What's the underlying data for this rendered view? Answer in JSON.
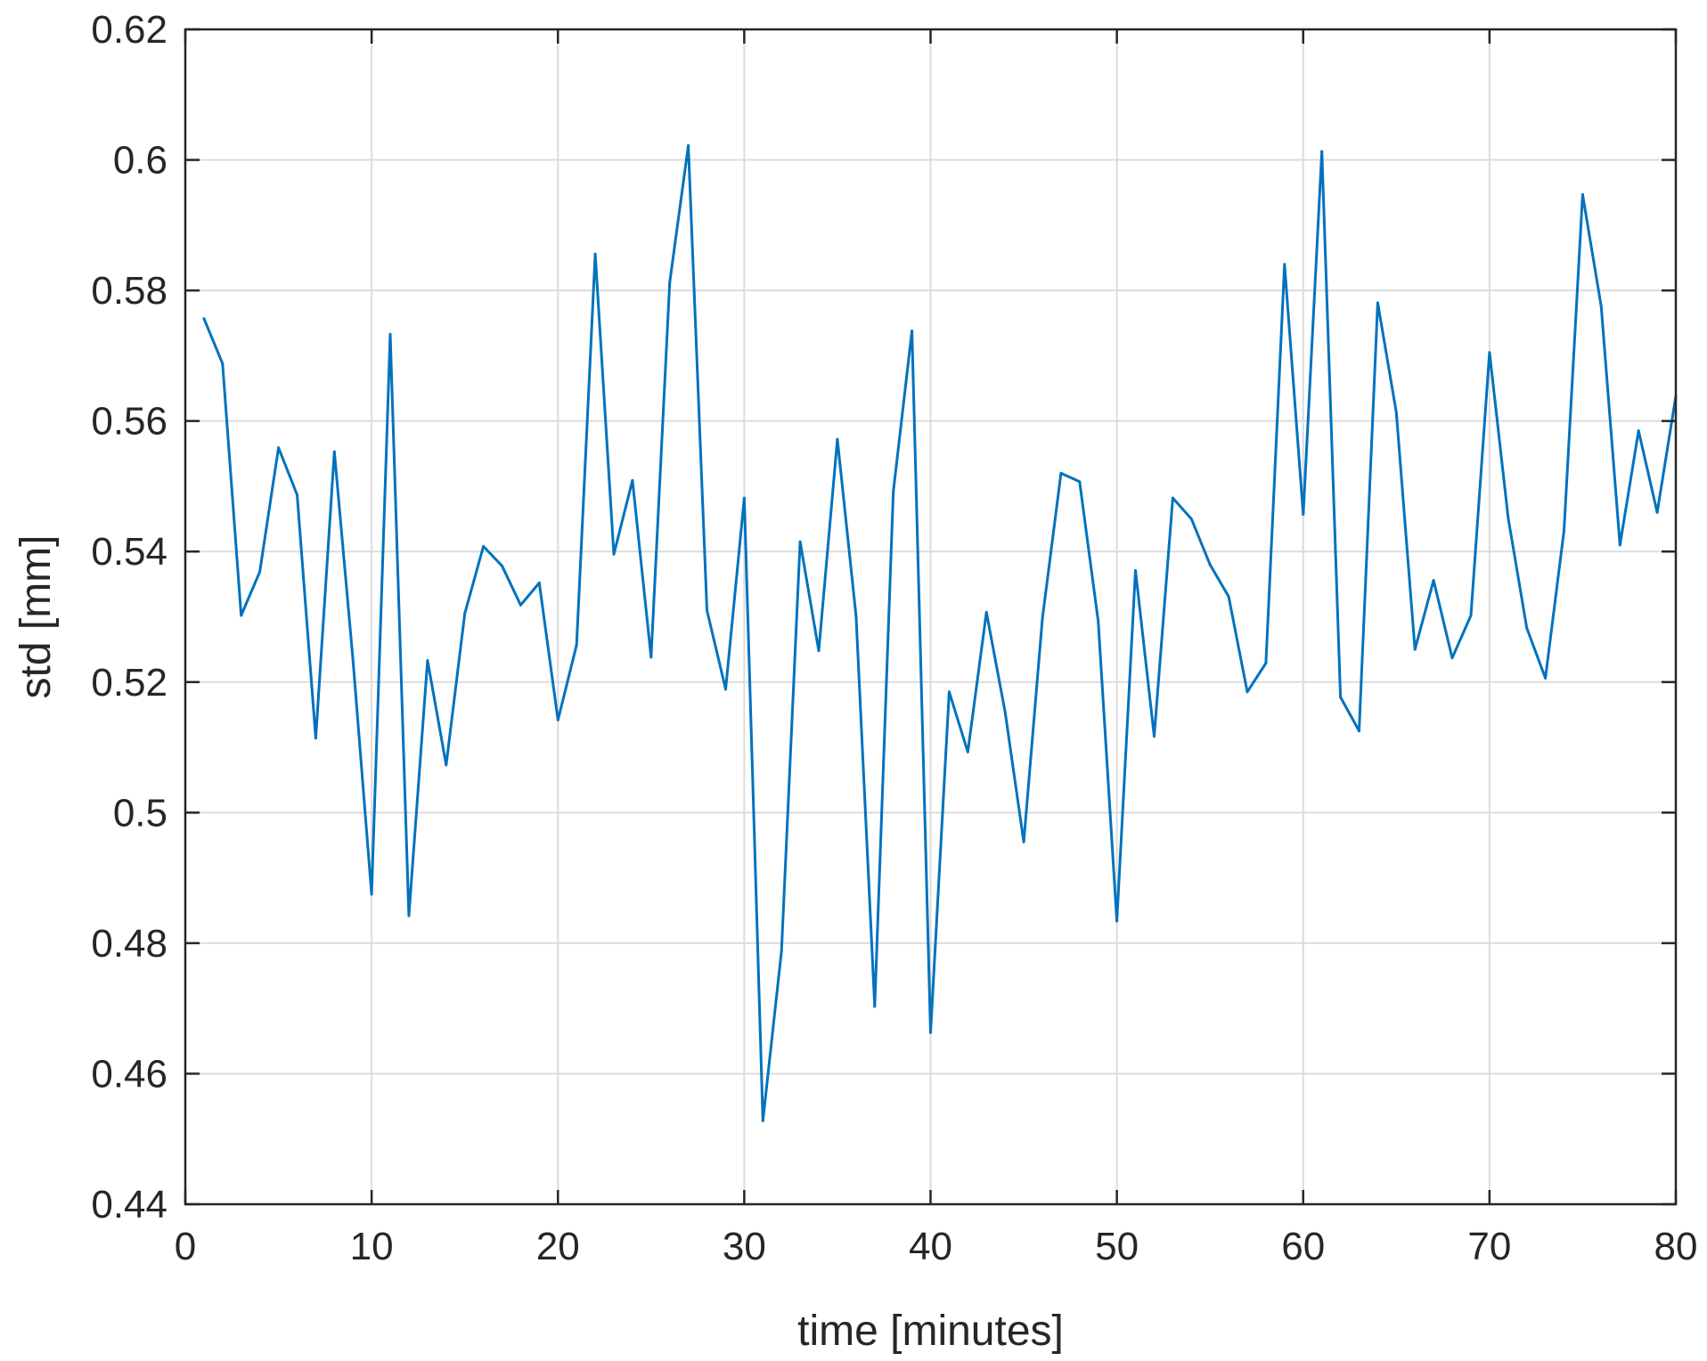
{
  "chart_data": {
    "type": "line",
    "title": "",
    "xlabel": "time [minutes]",
    "ylabel": "std [mm]",
    "xlim": [
      0,
      80
    ],
    "ylim": [
      0.44,
      0.62
    ],
    "grid": true,
    "legend": "none",
    "x_ticks": [
      {
        "value": 0,
        "label": "0"
      },
      {
        "value": 10,
        "label": "10"
      },
      {
        "value": 20,
        "label": "20"
      },
      {
        "value": 30,
        "label": "30"
      },
      {
        "value": 40,
        "label": "40"
      },
      {
        "value": 50,
        "label": "50"
      },
      {
        "value": 60,
        "label": "60"
      },
      {
        "value": 70,
        "label": "70"
      },
      {
        "value": 80,
        "label": "80"
      }
    ],
    "y_ticks": [
      {
        "value": 0.44,
        "label": "0.44"
      },
      {
        "value": 0.46,
        "label": "0.46"
      },
      {
        "value": 0.48,
        "label": "0.48"
      },
      {
        "value": 0.5,
        "label": "0.5"
      },
      {
        "value": 0.52,
        "label": "0.52"
      },
      {
        "value": 0.54,
        "label": "0.54"
      },
      {
        "value": 0.56,
        "label": "0.56"
      },
      {
        "value": 0.58,
        "label": "0.58"
      },
      {
        "value": 0.6,
        "label": "0.6"
      },
      {
        "value": 0.62,
        "label": "0.62"
      }
    ],
    "series": [
      {
        "color": "#0072BD",
        "x": [
          1,
          2,
          3,
          4,
          5,
          6,
          7,
          8,
          9,
          10,
          11,
          12,
          13,
          14,
          15,
          16,
          17,
          18,
          19,
          20,
          21,
          22,
          23,
          24,
          25,
          26,
          27,
          28,
          29,
          30,
          31,
          32,
          33,
          34,
          35,
          36,
          37,
          38,
          39,
          40,
          41,
          42,
          43,
          44,
          45,
          46,
          47,
          48,
          49,
          50,
          51,
          52,
          53,
          54,
          55,
          56,
          57,
          58,
          59,
          60,
          61,
          62,
          63,
          64,
          65,
          66,
          67,
          68,
          69,
          70,
          71,
          72,
          73,
          74,
          75,
          76,
          77,
          78,
          79,
          80
        ],
        "y": [
          0.5757,
          0.5688,
          0.5302,
          0.5369,
          0.5559,
          0.5487,
          0.5114,
          0.5553,
          0.5234,
          0.4875,
          0.5733,
          0.4842,
          0.5233,
          0.5073,
          0.5305,
          0.5408,
          0.5378,
          0.5318,
          0.5352,
          0.5142,
          0.5257,
          0.5856,
          0.5396,
          0.5509,
          0.5238,
          0.5812,
          0.6022,
          0.531,
          0.5189,
          0.5482,
          0.4528,
          0.4788,
          0.5415,
          0.5248,
          0.5572,
          0.5301,
          0.4703,
          0.5492,
          0.5738,
          0.4663,
          0.5185,
          0.5093,
          0.5307,
          0.5154,
          0.4955,
          0.5297,
          0.552,
          0.5507,
          0.5293,
          0.4834,
          0.5371,
          0.5117,
          0.5482,
          0.545,
          0.538,
          0.5331,
          0.5185,
          0.5229,
          0.584,
          0.5457,
          0.6013,
          0.5177,
          0.5125,
          0.5781,
          0.5613,
          0.525,
          0.5356,
          0.5237,
          0.5302,
          0.5705,
          0.5452,
          0.5283,
          0.5206,
          0.5432,
          0.5947,
          0.5775,
          0.541,
          0.5585,
          0.546,
          0.5638
        ]
      }
    ]
  }
}
